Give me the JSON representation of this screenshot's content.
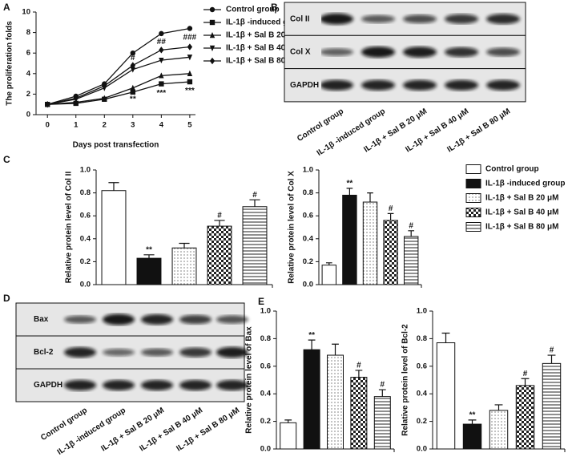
{
  "panel_labels": [
    "A",
    "B",
    "C",
    "D",
    "E"
  ],
  "legend": {
    "names": [
      "Control group",
      "IL-1β -induced group",
      "IL-1β + Sal B 20 μM",
      "IL-1β + Sal B 40 μM",
      "IL-1β + Sal B 80 μM"
    ],
    "patterns": [
      "white",
      "black",
      "dots",
      "checker",
      "hlines"
    ]
  },
  "chart_data": [
    {
      "type": "line",
      "xlabel": "Days post transfection",
      "ylabel": "The proliferation folds",
      "x": [
        0,
        1,
        2,
        3,
        4,
        5
      ],
      "xlim": [
        -0.4,
        5.2
      ],
      "xticks": [
        0,
        1,
        2,
        3,
        4,
        5
      ],
      "ylim": [
        0,
        10
      ],
      "yticks": [
        0,
        2,
        4,
        6,
        8,
        10
      ],
      "series": [
        {
          "name": "Control group",
          "marker": "circle",
          "color": "#111111",
          "values": [
            1,
            1.8,
            3.0,
            6.0,
            7.9,
            8.4
          ]
        },
        {
          "name": "IL-1β -induced group",
          "marker": "square",
          "color": "#111111",
          "values": [
            1,
            1.1,
            1.5,
            2.2,
            3.0,
            3.2
          ]
        },
        {
          "name": "IL-1β + Sal B 20 μM",
          "marker": "triangle-up",
          "color": "#111111",
          "values": [
            1,
            1.2,
            1.6,
            2.6,
            3.8,
            4.0
          ]
        },
        {
          "name": "IL-1β + Sal B 40 μM",
          "marker": "triangle-down",
          "color": "#111111",
          "values": [
            1,
            1.5,
            2.6,
            4.4,
            5.3,
            5.6
          ]
        },
        {
          "name": "IL-1β + Sal B 80 μM",
          "marker": "diamond",
          "color": "#111111",
          "values": [
            1,
            1.6,
            2.8,
            4.8,
            6.3,
            6.6
          ]
        }
      ],
      "annotations": [
        {
          "text": "**",
          "x": 3,
          "y": 1.5
        },
        {
          "text": "***",
          "x": 4,
          "y": 2.1
        },
        {
          "text": "***",
          "x": 5,
          "y": 2.3
        },
        {
          "text": "#",
          "x": 3,
          "y": 5.5
        },
        {
          "text": "##",
          "x": 4,
          "y": 7.1
        },
        {
          "text": "###",
          "x": 5,
          "y": 7.5
        }
      ]
    },
    {
      "type": "bar",
      "ylabel": "Relative protein level of Col II",
      "values": [
        0.82,
        0.23,
        0.32,
        0.51,
        0.68
      ],
      "errors": [
        0.07,
        0.03,
        0.04,
        0.05,
        0.06
      ],
      "ylim": [
        0,
        1
      ],
      "yticks": [
        {
          "value": 0,
          "label": "0.0"
        },
        0.2,
        0.4,
        0.6,
        0.8,
        {
          "value": 1,
          "label": "1.0"
        }
      ],
      "annotations": [
        {
          "index": 1,
          "text": "**"
        },
        {
          "index": 3,
          "text": "#"
        },
        {
          "index": 4,
          "text": "#"
        }
      ]
    },
    {
      "type": "bar",
      "ylabel": "Relative protein level of Col X",
      "values": [
        0.17,
        0.78,
        0.72,
        0.56,
        0.42
      ],
      "errors": [
        0.02,
        0.06,
        0.08,
        0.06,
        0.05
      ],
      "ylim": [
        0,
        1
      ],
      "yticks": [
        {
          "value": 0,
          "label": "0.0"
        },
        0.2,
        0.4,
        0.6,
        0.8,
        {
          "value": 1,
          "label": "1.0"
        }
      ],
      "annotations": [
        {
          "index": 1,
          "text": "**"
        },
        {
          "index": 3,
          "text": "#"
        },
        {
          "index": 4,
          "text": "#"
        }
      ]
    },
    {
      "type": "bar",
      "ylabel": "Relative protein level of Bax",
      "values": [
        0.19,
        0.72,
        0.68,
        0.52,
        0.38
      ],
      "errors": [
        0.02,
        0.07,
        0.08,
        0.05,
        0.05
      ],
      "ylim": [
        0,
        1
      ],
      "yticks": [
        {
          "value": 0,
          "label": "0.0"
        },
        0.2,
        0.4,
        0.6,
        0.8,
        {
          "value": 1,
          "label": "1.0"
        }
      ],
      "annotations": [
        {
          "index": 1,
          "text": "**"
        },
        {
          "index": 3,
          "text": "#"
        },
        {
          "index": 4,
          "text": "#"
        }
      ]
    },
    {
      "type": "bar",
      "ylabel": "Relative protein level of Bcl-2",
      "values": [
        0.77,
        0.18,
        0.28,
        0.46,
        0.62
      ],
      "errors": [
        0.07,
        0.03,
        0.04,
        0.05,
        0.06
      ],
      "ylim": [
        0,
        1
      ],
      "yticks": [
        {
          "value": 0,
          "label": "0.0"
        },
        0.2,
        0.4,
        0.6,
        0.8,
        {
          "value": 1,
          "label": "1.0"
        }
      ],
      "annotations": [
        {
          "index": 1,
          "text": "**"
        },
        {
          "index": 3,
          "text": "#"
        },
        {
          "index": 4,
          "text": "#"
        }
      ]
    }
  ],
  "blots": [
    {
      "rows": [
        "Col II",
        "Col X",
        "GAPDH"
      ],
      "lanes": [
        "Control group",
        "IL-1β -induced group",
        "IL-1β + Sal B 20 μM",
        "IL-1β + Sal B 40 μM",
        "IL-1β + Sal B 80 μM"
      ]
    },
    {
      "rows": [
        "Bax",
        "Bcl-2",
        "GAPDH"
      ],
      "lanes": [
        "Control group",
        "IL-1β -induced group",
        "IL-1β + Sal B 20 μM",
        "IL-1β + Sal B 40 μM",
        "IL-1β + Sal B 80 μM"
      ]
    }
  ]
}
